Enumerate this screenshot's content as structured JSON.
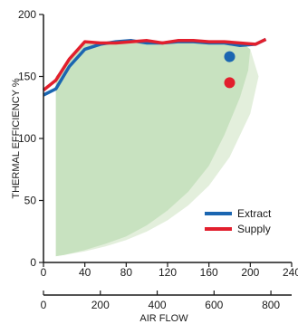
{
  "chart_data": {
    "type": "line",
    "ylabel": "THERMAL EFFICIENCY %",
    "xlabel_secondary": "AIR FLOW",
    "xlim": [
      0,
      240
    ],
    "ylim": [
      0,
      200
    ],
    "x_ticks": [
      "0",
      "40",
      "80",
      "120",
      "160",
      "200",
      "240"
    ],
    "y_ticks": [
      "0",
      "50",
      "100",
      "150",
      "200"
    ],
    "secondary_xlim": [
      0,
      873
    ],
    "secondary_x_ticks": [
      "0",
      "200",
      "400",
      "600",
      "800"
    ],
    "legend_position": "bottom-right",
    "grid": false,
    "series": [
      {
        "name": "Extract",
        "color": "#1b66b1",
        "x": [
          0,
          12,
          25,
          40,
          55,
          70,
          85,
          100,
          115,
          130,
          145,
          160,
          175,
          190,
          205,
          215
        ],
        "y": [
          135,
          140,
          158,
          172,
          176,
          178,
          179,
          177,
          177,
          178,
          178,
          177,
          177,
          175,
          176,
          180
        ]
      },
      {
        "name": "Supply",
        "color": "#e21f2d",
        "x": [
          0,
          12,
          25,
          40,
          55,
          70,
          85,
          100,
          115,
          130,
          145,
          160,
          175,
          190,
          205,
          215
        ],
        "y": [
          139,
          147,
          164,
          178,
          177,
          177,
          178,
          179,
          177,
          179,
          179,
          178,
          178,
          177,
          176,
          180
        ]
      }
    ],
    "markers": [
      {
        "series": "Extract",
        "x": 180,
        "y": 166,
        "color": "#1b66b1"
      },
      {
        "series": "Supply",
        "x": 180,
        "y": 145,
        "color": "#e21f2d"
      }
    ],
    "bands": [
      {
        "color": "#e3efdc",
        "x": [
          12,
          20,
          40,
          60,
          80,
          100,
          120,
          140,
          160,
          180,
          200,
          208,
          200,
          190,
          40,
          12
        ],
        "y": [
          5,
          6,
          9,
          13,
          18,
          25,
          34,
          46,
          62,
          85,
          120,
          150,
          172,
          178,
          178,
          150
        ]
      },
      {
        "color": "#c8e2c0",
        "x": [
          12,
          20,
          40,
          60,
          80,
          100,
          120,
          140,
          160,
          175,
          190,
          198,
          200,
          190,
          40,
          12
        ],
        "y": [
          5,
          6,
          10,
          15,
          21,
          30,
          42,
          57,
          78,
          103,
          133,
          155,
          172,
          178,
          178,
          150
        ]
      }
    ]
  }
}
